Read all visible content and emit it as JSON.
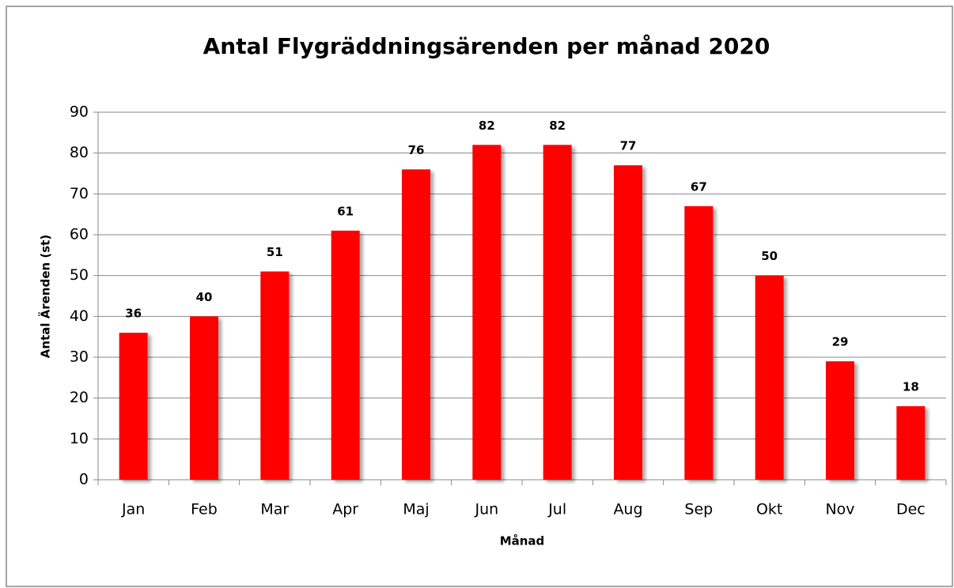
{
  "chart_data": {
    "type": "bar",
    "title": "Antal Flygräddningsärenden per månad 2020",
    "x_label": "Månad",
    "y_label": "Antal Ärenden (st)",
    "categories": [
      "Jan",
      "Feb",
      "Mar",
      "Apr",
      "Maj",
      "Jun",
      "Jul",
      "Aug",
      "Sep",
      "Okt",
      "Nov",
      "Dec"
    ],
    "values": [
      36,
      40,
      51,
      61,
      76,
      82,
      82,
      77,
      67,
      50,
      29,
      18
    ],
    "color": "#ff0000",
    "ylim": [
      0,
      90
    ],
    "yticks": [
      0,
      10,
      20,
      30,
      40,
      50,
      60,
      70,
      80,
      90
    ],
    "grid": true
  }
}
